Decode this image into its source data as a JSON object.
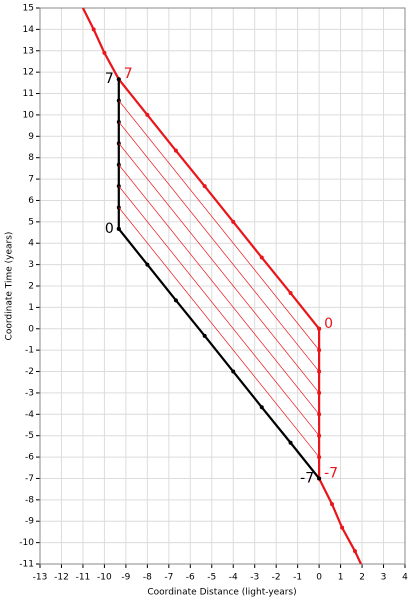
{
  "chart_data": {
    "type": "line",
    "x_label": "Coordinate Distance (light-years)",
    "y_label": "Coordinate Time (years)",
    "xlim": [
      -13,
      4
    ],
    "ylim": [
      -11,
      15
    ],
    "xticks": [
      -13,
      -12,
      -11,
      -10,
      -9,
      -8,
      -7,
      -6,
      -5,
      -4,
      -3,
      -2,
      -1,
      0,
      1,
      2,
      3,
      4
    ],
    "yticks": [
      -11,
      -10,
      -9,
      -8,
      -7,
      -6,
      -5,
      -4,
      -3,
      -2,
      -1,
      0,
      1,
      2,
      3,
      4,
      5,
      6,
      7,
      8,
      9,
      10,
      11,
      12,
      13,
      14,
      15
    ],
    "grid": true,
    "series": [
      {
        "color": "#e8161b",
        "width": 2.2,
        "markers": true,
        "x": [
          -11,
          -10.5,
          -10,
          -9.33,
          -8,
          -6.67,
          -5.33,
          -4,
          -2.67,
          -1.33,
          0
        ],
        "y": [
          15,
          14,
          12.9,
          11.67,
          10,
          8.33,
          6.67,
          5,
          3.33,
          1.67,
          0
        ]
      },
      {
        "color": "#e8161b",
        "width": 2.2,
        "markers": true,
        "x": [
          0,
          0,
          0,
          0,
          0,
          0,
          0,
          0
        ],
        "y": [
          0,
          -1,
          -2,
          -3,
          -4,
          -5,
          -6,
          -7
        ]
      },
      {
        "color": "#e8161b",
        "width": 2.2,
        "markers": true,
        "x": [
          0,
          0.6,
          1.07,
          1.67,
          1.95
        ],
        "y": [
          -7,
          -8.2,
          -9.3,
          -10.4,
          -11
        ]
      },
      {
        "color": "#000000",
        "width": 2.2,
        "markers": true,
        "x": [
          -9.33,
          -9.33,
          -9.33,
          -9.33,
          -9.33,
          -9.33,
          -9.33,
          -9.33
        ],
        "y": [
          4.67,
          5.67,
          6.67,
          7.67,
          8.67,
          9.67,
          10.67,
          11.67
        ]
      },
      {
        "color": "#000000",
        "width": 2.2,
        "markers": true,
        "x": [
          -9.33,
          -8,
          -6.67,
          -5.33,
          -4,
          -2.67,
          -1.33,
          0
        ],
        "y": [
          4.67,
          3,
          1.33,
          -0.33,
          -2,
          -3.67,
          -5.33,
          -7
        ]
      },
      {
        "color": "#e8161b",
        "width": 0.7,
        "markers": false,
        "x": [
          -9.33,
          0
        ],
        "y": [
          5.67,
          -6
        ]
      },
      {
        "color": "#e8161b",
        "width": 0.7,
        "markers": false,
        "x": [
          -9.33,
          0
        ],
        "y": [
          6.67,
          -5
        ]
      },
      {
        "color": "#e8161b",
        "width": 0.7,
        "markers": false,
        "x": [
          -9.33,
          0
        ],
        "y": [
          7.67,
          -4
        ]
      },
      {
        "color": "#e8161b",
        "width": 0.7,
        "markers": false,
        "x": [
          -9.33,
          0
        ],
        "y": [
          8.67,
          -3
        ]
      },
      {
        "color": "#e8161b",
        "width": 0.7,
        "markers": false,
        "x": [
          -9.33,
          0
        ],
        "y": [
          9.67,
          -2
        ]
      },
      {
        "color": "#e8161b",
        "width": 0.7,
        "markers": false,
        "x": [
          -9.33,
          0
        ],
        "y": [
          10.67,
          -1
        ]
      }
    ],
    "annotations": [
      {
        "text": "7",
        "x": -9.33,
        "y": 11.67,
        "color": "#000000",
        "anchor": "end"
      },
      {
        "text": "7",
        "x": -9.33,
        "y": 11.67,
        "color": "#e8161b",
        "anchor": "start"
      },
      {
        "text": "0",
        "x": -9.33,
        "y": 4.67,
        "color": "#000000",
        "anchor": "end"
      },
      {
        "text": "0",
        "x": 0,
        "y": 0,
        "color": "#e8161b",
        "anchor": "start"
      },
      {
        "text": "-7",
        "x": 0,
        "y": -7,
        "color": "#000000",
        "anchor": "end"
      },
      {
        "text": "-7",
        "x": 0,
        "y": -7,
        "color": "#e8161b",
        "anchor": "start"
      }
    ]
  }
}
